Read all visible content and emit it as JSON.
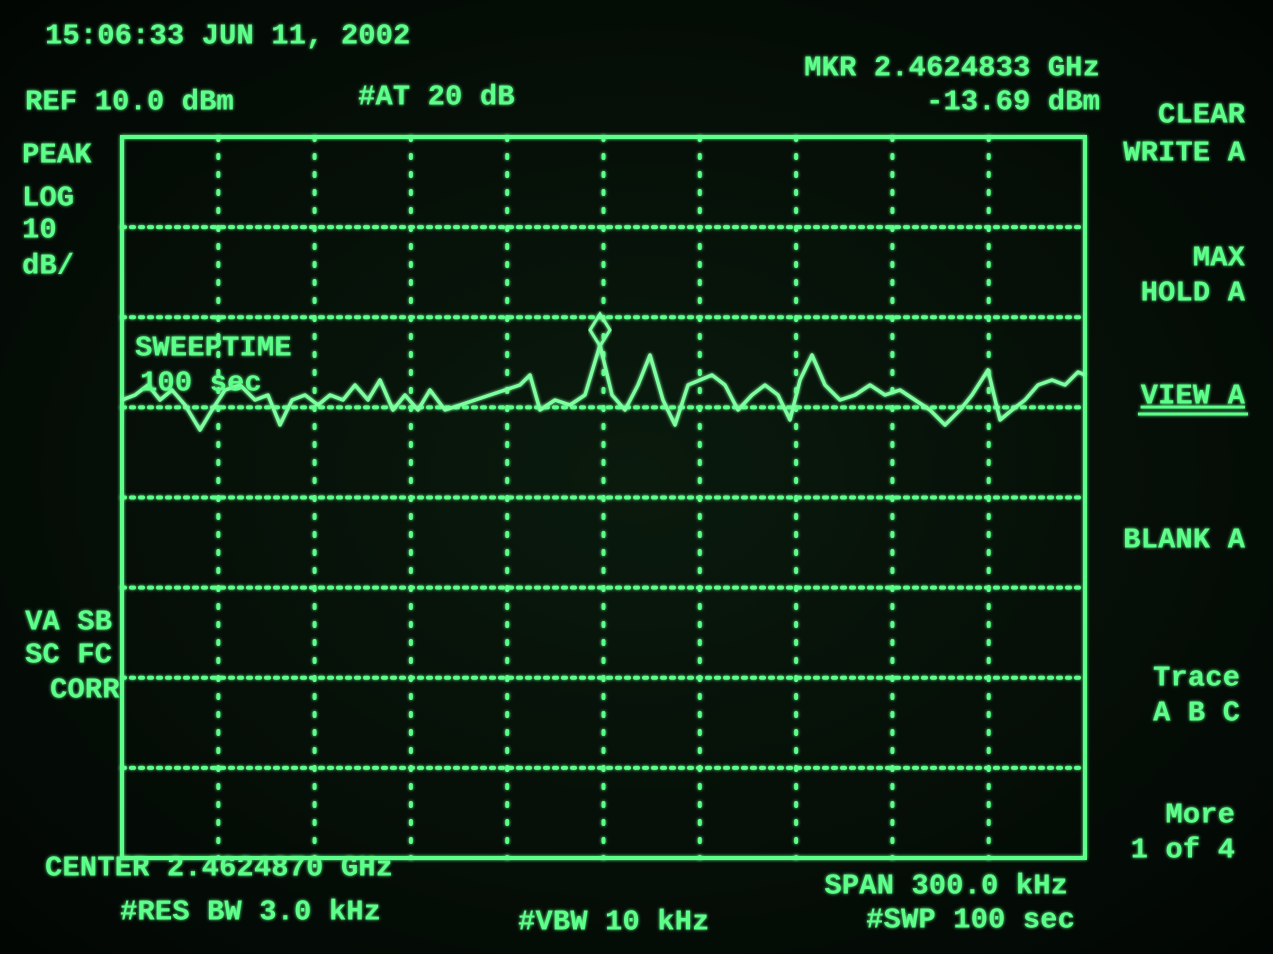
{
  "header": {
    "timestamp": "15:06:33 JUN 11, 2002",
    "ref_level": "REF 10.0 dBm",
    "attenuation": "#AT 20 dB",
    "marker_freq": "MKR 2.4624833 GHz",
    "marker_level": "-13.69 dBm"
  },
  "scale": [
    "PEAK",
    "LOG",
    "10",
    "dB/"
  ],
  "annotation": {
    "label": "SWEEPTIME",
    "value": "100 sec"
  },
  "status": [
    "VA SB",
    "SC FC",
    "CORR"
  ],
  "footer": {
    "center": "CENTER 2.4624870 GHz",
    "res_bw": "#RES BW 3.0 kHz",
    "vbw": "#VBW 10 kHz",
    "span": "SPAN 300.0 kHz",
    "sweep": "#SWP 100 sec"
  },
  "softkeys": [
    {
      "lines": [
        "CLEAR",
        "WRITE A"
      ]
    },
    {
      "lines": [
        "MAX",
        "HOLD A"
      ]
    },
    {
      "lines": [
        "VIEW A"
      ]
    },
    {
      "lines": [
        "BLANK A"
      ]
    },
    {
      "lines": [
        "Trace",
        "A B C"
      ]
    },
    {
      "lines": [
        "More",
        "1 of 4"
      ]
    }
  ]
}
